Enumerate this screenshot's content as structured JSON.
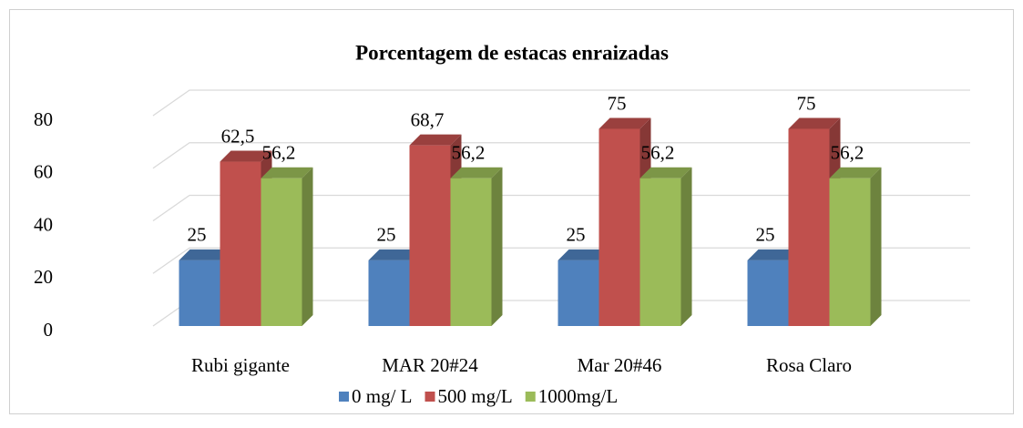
{
  "chart_data": {
    "type": "bar3d",
    "title": "Porcentagem de estacas enraizadas",
    "categories": [
      "Rubi gigante",
      "MAR 20#24",
      "Mar 20#46",
      "Rosa Claro"
    ],
    "series": [
      {
        "name": "0 mg/ L",
        "color": "#4f81bd",
        "values": [
          25,
          25,
          25,
          25
        ]
      },
      {
        "name": "500 mg/L",
        "color": "#c0504d",
        "values": [
          62.5,
          68.7,
          75,
          75
        ],
        "value_labels": [
          "62,5",
          "68,7",
          "75",
          "75"
        ]
      },
      {
        "name": "1000mg/L",
        "color": "#9bbb59",
        "values": [
          56.2,
          56.2,
          56.2,
          56.2
        ],
        "value_labels": [
          "56,2",
          "56,2",
          "56,2",
          "56,2"
        ]
      }
    ],
    "ylim": [
      0,
      80
    ],
    "yticks": [
      0,
      20,
      40,
      60,
      80
    ],
    "grid": true,
    "legend": "bottom"
  }
}
